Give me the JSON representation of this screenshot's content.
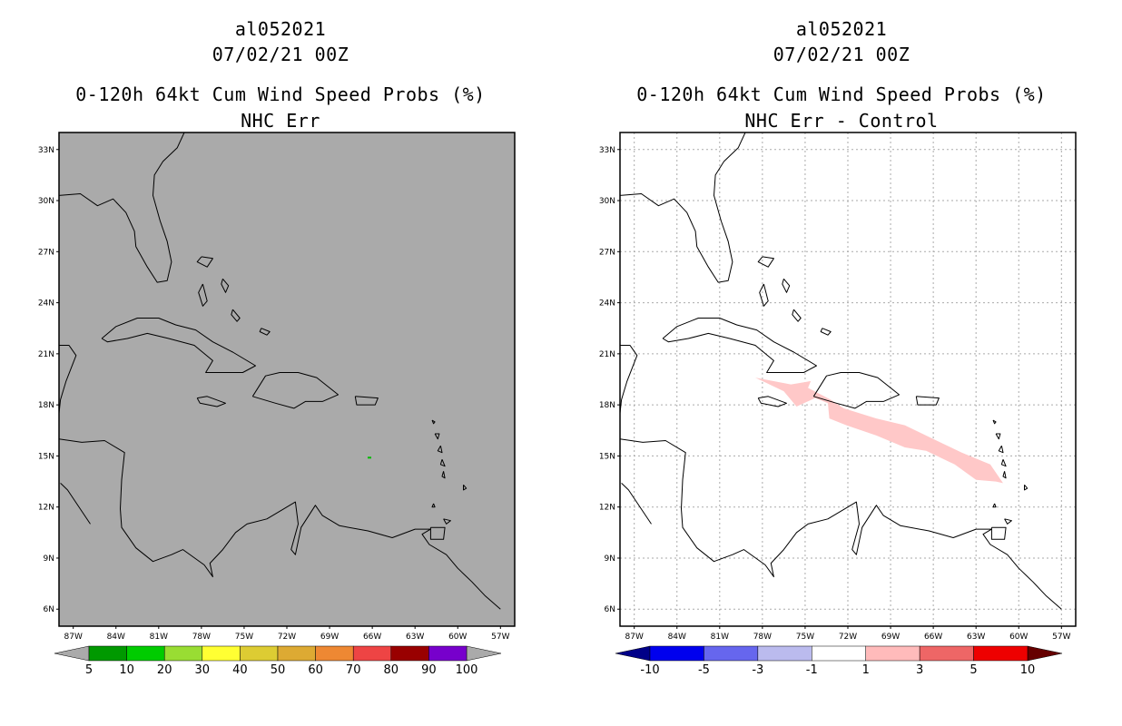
{
  "panels": [
    {
      "storm_id": "al052021",
      "datetime": "07/02/21 00Z",
      "product": "0-120h 64kt Cum Wind Speed Probs (%)",
      "subtitle": "NHC Err",
      "background_color": "#aaaaaa",
      "gridlines": false,
      "colorbar": {
        "colors": [
          "#009900",
          "#00cc00",
          "#99dd33",
          "#ffff33",
          "#ddcc33",
          "#ddaa33",
          "#ee8833",
          "#ee4444",
          "#990000",
          "#7700cc"
        ],
        "labels": [
          "5",
          "10",
          "20",
          "30",
          "40",
          "50",
          "60",
          "70",
          "80",
          "90",
          "100"
        ]
      }
    },
    {
      "storm_id": "al052021",
      "datetime": "07/02/21 00Z",
      "product": "0-120h 64kt Cum Wind Speed Probs (%)",
      "subtitle": "NHC Err - Control",
      "background_color": "#ffffff",
      "gridlines": true,
      "colorbar": {
        "colors": [
          "#000088",
          "#0000ee",
          "#6666ee",
          "#bbbbee",
          "#ffffff",
          "#ffbbbb",
          "#ee6666",
          "#ee0000",
          "#660000"
        ],
        "labels": [
          "-10",
          "-5",
          "-3",
          "-1",
          "1",
          "3",
          "5",
          "10"
        ]
      }
    }
  ],
  "map": {
    "lat_labels": [
      "33N",
      "30N",
      "27N",
      "24N",
      "21N",
      "18N",
      "15N",
      "12N",
      "9N",
      "6N"
    ],
    "lon_labels": [
      "87W",
      "84W",
      "81W",
      "78W",
      "75W",
      "72W",
      "69W",
      "66W",
      "63W",
      "60W",
      "57W"
    ],
    "lat_range": [
      5,
      34
    ],
    "lon_range": [
      -88,
      -56
    ]
  }
}
